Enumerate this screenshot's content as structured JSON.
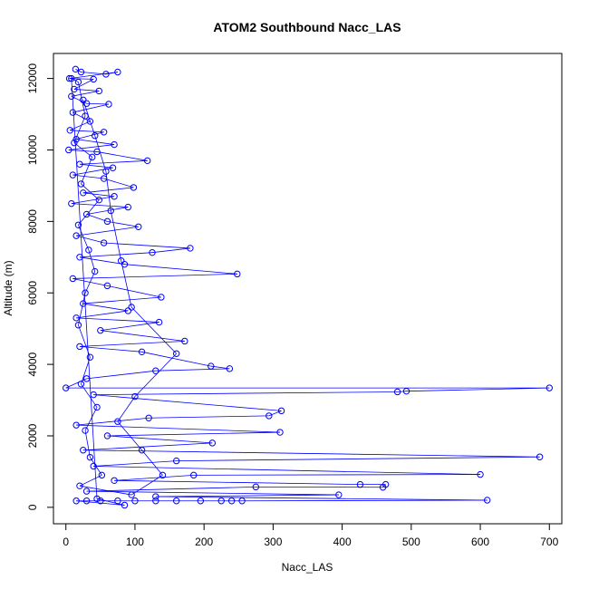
{
  "chart_data": {
    "type": "scatter",
    "title": "ATOM2 Southbound Nacc_LAS",
    "xlabel": "Nacc_LAS",
    "ylabel": "Altitude (m)",
    "xlim": [
      -18,
      718
    ],
    "ylim": [
      -460,
      12700
    ],
    "xticks": [
      0,
      100,
      200,
      300,
      400,
      500,
      600,
      700
    ],
    "yticks": [
      0,
      2000,
      4000,
      6000,
      8000,
      10000,
      12000
    ],
    "grid": false,
    "legend": "none",
    "series_color": "#0000ff",
    "series": [
      {
        "values": [
          {
            "x": 14,
            "y": 12260
          },
          {
            "x": 22,
            "y": 12180
          },
          {
            "x": 58,
            "y": 12120
          },
          {
            "x": 75,
            "y": 12180
          },
          {
            "x": 5,
            "y": 12000
          },
          {
            "x": 40,
            "y": 11980
          },
          {
            "x": 12,
            "y": 11700
          },
          {
            "x": 48,
            "y": 11650
          },
          {
            "x": 8,
            "y": 11500
          },
          {
            "x": 30,
            "y": 11300
          },
          {
            "x": 62,
            "y": 11280
          },
          {
            "x": 10,
            "y": 11050
          },
          {
            "x": 35,
            "y": 10800
          },
          {
            "x": 6,
            "y": 10550
          },
          {
            "x": 55,
            "y": 10500
          },
          {
            "x": 15,
            "y": 10300
          },
          {
            "x": 70,
            "y": 10150
          },
          {
            "x": 4,
            "y": 10000
          },
          {
            "x": 45,
            "y": 9950
          },
          {
            "x": 118,
            "y": 9700
          },
          {
            "x": 20,
            "y": 9600
          },
          {
            "x": 68,
            "y": 9500
          },
          {
            "x": 10,
            "y": 9300
          },
          {
            "x": 55,
            "y": 9200
          },
          {
            "x": 98,
            "y": 8950
          },
          {
            "x": 25,
            "y": 8800
          },
          {
            "x": 70,
            "y": 8700
          },
          {
            "x": 8,
            "y": 8500
          },
          {
            "x": 90,
            "y": 8400
          },
          {
            "x": 30,
            "y": 8200
          },
          {
            "x": 60,
            "y": 8000
          },
          {
            "x": 105,
            "y": 7850
          },
          {
            "x": 15,
            "y": 7600
          },
          {
            "x": 55,
            "y": 7400
          },
          {
            "x": 180,
            "y": 7250
          },
          {
            "x": 125,
            "y": 7130
          },
          {
            "x": 20,
            "y": 7000
          },
          {
            "x": 85,
            "y": 6800
          },
          {
            "x": 248,
            "y": 6530
          },
          {
            "x": 10,
            "y": 6400
          },
          {
            "x": 60,
            "y": 6200
          },
          {
            "x": 138,
            "y": 5880
          },
          {
            "x": 25,
            "y": 5700
          },
          {
            "x": 90,
            "y": 5500
          },
          {
            "x": 15,
            "y": 5300
          },
          {
            "x": 135,
            "y": 5180
          },
          {
            "x": 50,
            "y": 4950
          },
          {
            "x": 172,
            "y": 4650
          },
          {
            "x": 20,
            "y": 4500
          },
          {
            "x": 110,
            "y": 4350
          },
          {
            "x": 210,
            "y": 3950
          },
          {
            "x": 237,
            "y": 3880
          },
          {
            "x": 130,
            "y": 3820
          },
          {
            "x": 30,
            "y": 3600
          },
          {
            "x": 0,
            "y": 3340
          },
          {
            "x": 700,
            "y": 3340
          },
          {
            "x": 493,
            "y": 3250
          },
          {
            "x": 480,
            "y": 3230
          },
          {
            "x": 40,
            "y": 3150
          },
          {
            "x": 312,
            "y": 2700
          },
          {
            "x": 294,
            "y": 2560
          },
          {
            "x": 120,
            "y": 2500
          },
          {
            "x": 15,
            "y": 2300
          },
          {
            "x": 310,
            "y": 2100
          },
          {
            "x": 60,
            "y": 2000
          },
          {
            "x": 212,
            "y": 1800
          },
          {
            "x": 25,
            "y": 1600
          },
          {
            "x": 686,
            "y": 1410
          },
          {
            "x": 160,
            "y": 1300
          },
          {
            "x": 40,
            "y": 1150
          },
          {
            "x": 600,
            "y": 920
          },
          {
            "x": 185,
            "y": 900
          },
          {
            "x": 70,
            "y": 750
          },
          {
            "x": 426,
            "y": 640
          },
          {
            "x": 463,
            "y": 640
          },
          {
            "x": 459,
            "y": 560
          },
          {
            "x": 275,
            "y": 570
          },
          {
            "x": 30,
            "y": 450
          },
          {
            "x": 395,
            "y": 350
          },
          {
            "x": 130,
            "y": 300
          },
          {
            "x": 610,
            "y": 200
          },
          {
            "x": 255,
            "y": 180
          },
          {
            "x": 240,
            "y": 180
          },
          {
            "x": 225,
            "y": 180
          },
          {
            "x": 195,
            "y": 180
          },
          {
            "x": 160,
            "y": 180
          },
          {
            "x": 130,
            "y": 180
          },
          {
            "x": 100,
            "y": 180
          },
          {
            "x": 75,
            "y": 180
          },
          {
            "x": 50,
            "y": 180
          },
          {
            "x": 30,
            "y": 180
          },
          {
            "x": 15,
            "y": 180
          },
          {
            "x": 85,
            "y": 60
          },
          {
            "x": 45,
            "y": 240
          },
          {
            "x": 8,
            "y": 12000
          },
          {
            "x": 18,
            "y": 11900
          },
          {
            "x": 28,
            "y": 10950
          },
          {
            "x": 12,
            "y": 10200
          },
          {
            "x": 38,
            "y": 9800
          },
          {
            "x": 22,
            "y": 9050
          },
          {
            "x": 48,
            "y": 8600
          },
          {
            "x": 18,
            "y": 7900
          },
          {
            "x": 33,
            "y": 7200
          },
          {
            "x": 42,
            "y": 6600
          },
          {
            "x": 28,
            "y": 6000
          },
          {
            "x": 18,
            "y": 5100
          },
          {
            "x": 35,
            "y": 4200
          },
          {
            "x": 22,
            "y": 3450
          },
          {
            "x": 45,
            "y": 2800
          },
          {
            "x": 28,
            "y": 2150
          },
          {
            "x": 35,
            "y": 1400
          },
          {
            "x": 52,
            "y": 900
          },
          {
            "x": 20,
            "y": 600
          },
          {
            "x": 95,
            "y": 350
          },
          {
            "x": 140,
            "y": 900
          },
          {
            "x": 110,
            "y": 1600
          },
          {
            "x": 75,
            "y": 2400
          },
          {
            "x": 100,
            "y": 3100
          },
          {
            "x": 160,
            "y": 4300
          },
          {
            "x": 95,
            "y": 5600
          },
          {
            "x": 80,
            "y": 6900
          },
          {
            "x": 65,
            "y": 8300
          },
          {
            "x": 58,
            "y": 9400
          },
          {
            "x": 42,
            "y": 10400
          },
          {
            "x": 25,
            "y": 11400
          }
        ]
      }
    ]
  }
}
